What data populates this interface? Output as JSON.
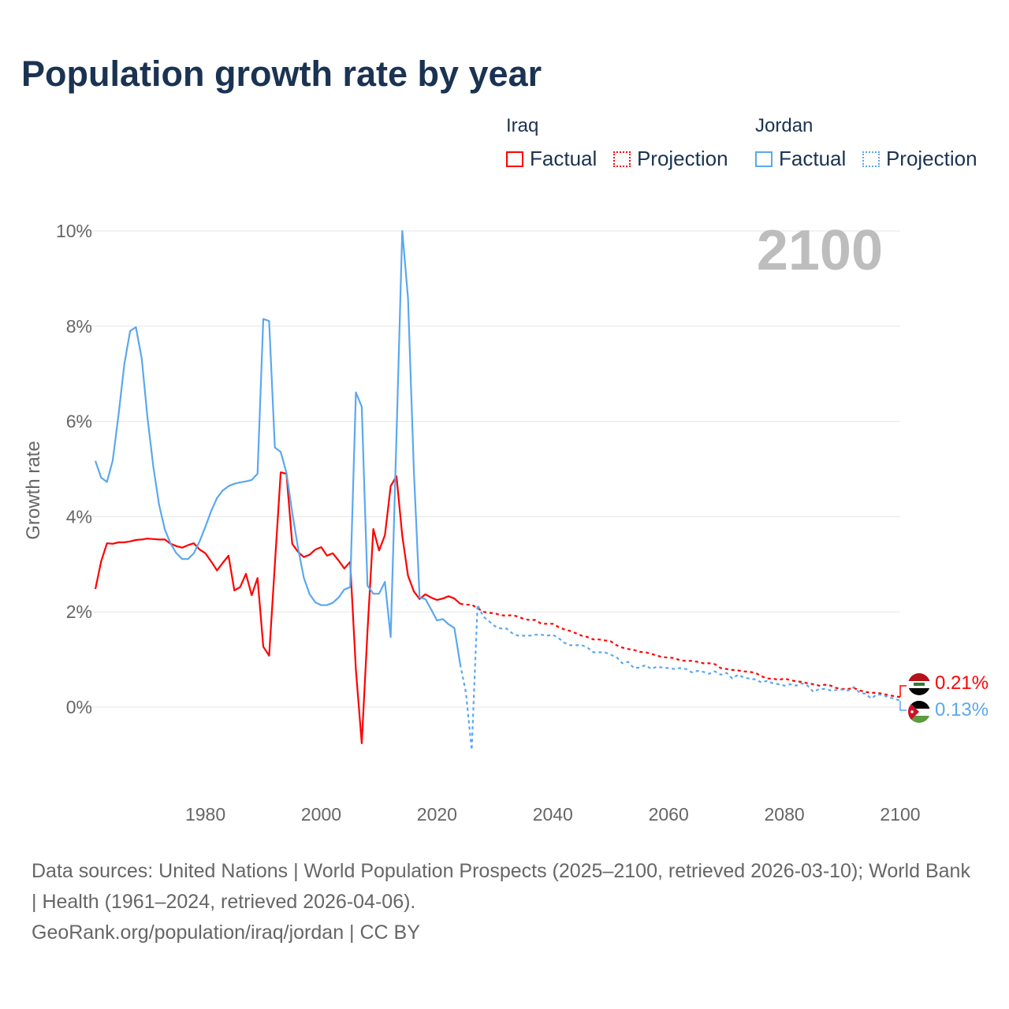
{
  "title": "Population growth rate by year",
  "legend": {
    "groups": [
      {
        "name": "Iraq",
        "factual": "Factual",
        "projection": "Projection",
        "color": "#ff0000"
      },
      {
        "name": "Jordan",
        "factual": "Factual",
        "projection": "Projection",
        "color": "#5ba8ee"
      }
    ]
  },
  "year_display": "2100",
  "end_labels": {
    "iraq": "0.21%",
    "jordan": "0.13%",
    "iraq_flag_icon": "iraq-flag",
    "jordan_flag_icon": "jordan-flag"
  },
  "footer": {
    "sources": "Data sources: United Nations | World Population Prospects (2025–2100, retrieved 2026-03-10); World Bank | Health (1961–2024, retrieved 2026-04-06).",
    "credit": "GeoRank.org/population/iraq/jordan | CC BY"
  },
  "chart_data": {
    "type": "line",
    "title": "Population growth rate by year",
    "xlabel": "",
    "ylabel": "Growth rate",
    "xlim": [
      1961,
      2100
    ],
    "ylim": [
      0,
      10
    ],
    "x_ticks": [
      "1980",
      "2000",
      "2020",
      "2040",
      "2060",
      "2080",
      "2100"
    ],
    "y_ticks": [
      "0%",
      "2%",
      "4%",
      "6%",
      "8%",
      "10%"
    ],
    "grid": true,
    "series": [
      {
        "name": "Iraq Factual",
        "color": "#ff0000",
        "dashed": false,
        "start_year": 1961,
        "values": [
          2.48,
          3.06,
          3.44,
          3.43,
          3.46,
          3.46,
          3.48,
          3.51,
          3.52,
          3.54,
          3.53,
          3.52,
          3.52,
          3.43,
          3.38,
          3.35,
          3.4,
          3.44,
          3.31,
          3.23,
          3.06,
          2.87,
          3.03,
          3.18,
          2.45,
          2.52,
          2.8,
          2.35,
          2.71,
          1.27,
          1.08,
          3.0,
          4.93,
          4.9,
          3.43,
          3.26,
          3.15,
          3.2,
          3.31,
          3.36,
          3.18,
          3.23,
          3.08,
          2.91,
          3.05,
          0.78,
          -0.76,
          1.6,
          3.74,
          3.29,
          3.61,
          4.64,
          4.85,
          3.6,
          2.76,
          2.43,
          2.27,
          2.37,
          2.3,
          2.25,
          2.28,
          2.33,
          2.28,
          2.17
        ]
      },
      {
        "name": "Iraq Projection",
        "color": "#ff0000",
        "dashed": true,
        "start_year": 2024,
        "values": [
          2.17,
          2.15,
          2.15,
          2.08,
          2.0,
          1.98,
          1.97,
          1.93,
          1.92,
          1.93,
          1.9,
          1.85,
          1.83,
          1.83,
          1.75,
          1.75,
          1.75,
          1.68,
          1.63,
          1.6,
          1.55,
          1.5,
          1.47,
          1.42,
          1.42,
          1.4,
          1.38,
          1.3,
          1.25,
          1.22,
          1.2,
          1.16,
          1.15,
          1.12,
          1.08,
          1.05,
          1.04,
          1.03,
          0.98,
          0.97,
          0.97,
          0.95,
          0.92,
          0.92,
          0.9,
          0.82,
          0.8,
          0.78,
          0.77,
          0.75,
          0.74,
          0.72,
          0.65,
          0.6,
          0.6,
          0.57,
          0.6,
          0.57,
          0.54,
          0.53,
          0.5,
          0.48,
          0.45,
          0.47,
          0.45,
          0.4,
          0.38,
          0.38,
          0.4,
          0.35,
          0.32,
          0.3,
          0.3,
          0.28,
          0.25,
          0.23,
          0.21
        ]
      },
      {
        "name": "Jordan Factual",
        "color": "#5ba8ee",
        "dashed": false,
        "start_year": 1961,
        "values": [
          5.17,
          4.82,
          4.73,
          5.18,
          6.14,
          7.2,
          7.9,
          7.98,
          7.32,
          6.08,
          5.05,
          4.25,
          3.73,
          3.43,
          3.23,
          3.11,
          3.11,
          3.23,
          3.48,
          3.79,
          4.12,
          4.39,
          4.55,
          4.64,
          4.69,
          4.72,
          4.74,
          4.77,
          4.9,
          8.15,
          8.11,
          5.45,
          5.36,
          4.92,
          4.09,
          3.34,
          2.72,
          2.37,
          2.2,
          2.14,
          2.14,
          2.19,
          2.3,
          2.47,
          2.52,
          6.61,
          6.31,
          2.55,
          2.38,
          2.38,
          2.63,
          1.47,
          5.7,
          10.0,
          8.59,
          4.97,
          2.3,
          2.27,
          2.05,
          1.82,
          1.85,
          1.74,
          1.66,
          0.9
        ]
      },
      {
        "name": "Jordan Projection",
        "color": "#5ba8ee",
        "dashed": true,
        "start_year": 2024,
        "values": [
          0.9,
          0.3,
          -0.9,
          2.15,
          1.9,
          1.8,
          1.7,
          1.65,
          1.65,
          1.55,
          1.5,
          1.5,
          1.5,
          1.52,
          1.52,
          1.5,
          1.52,
          1.45,
          1.35,
          1.3,
          1.3,
          1.3,
          1.25,
          1.15,
          1.15,
          1.15,
          1.1,
          1.05,
          0.92,
          0.95,
          0.82,
          0.83,
          0.88,
          0.8,
          0.85,
          0.83,
          0.82,
          0.8,
          0.82,
          0.8,
          0.73,
          0.76,
          0.74,
          0.7,
          0.75,
          0.68,
          0.72,
          0.6,
          0.68,
          0.62,
          0.6,
          0.58,
          0.52,
          0.55,
          0.5,
          0.48,
          0.45,
          0.48,
          0.45,
          0.5,
          0.45,
          0.32,
          0.38,
          0.38,
          0.35,
          0.36,
          0.37,
          0.35,
          0.42,
          0.3,
          0.28,
          0.18,
          0.27,
          0.25,
          0.2,
          0.18,
          0.13
        ]
      }
    ]
  }
}
